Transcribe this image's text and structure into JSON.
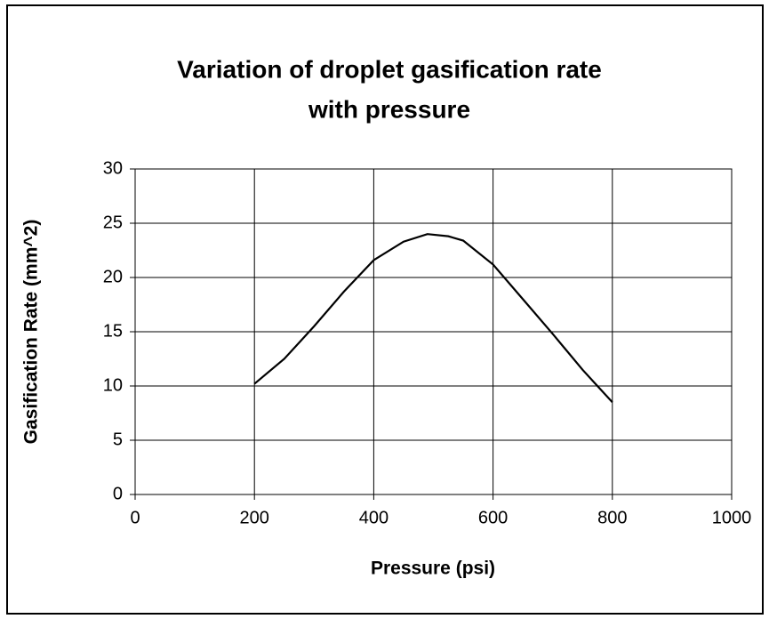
{
  "chart_data": {
    "type": "line",
    "title": [
      "Variation of droplet gasification rate",
      "with pressure"
    ],
    "xlabel": "Pressure (psi)",
    "ylabel": "Gasification Rate (mm^2)",
    "x": [
      200,
      250,
      300,
      350,
      400,
      450,
      490,
      525,
      550,
      600,
      650,
      700,
      750,
      770,
      800
    ],
    "series": [
      {
        "name": "Gasification Rate",
        "color": "#000000",
        "values": [
          10.2,
          12.5,
          15.5,
          18.7,
          21.6,
          23.3,
          24,
          23.8,
          23.4,
          21.2,
          18,
          14.8,
          11.5,
          10.3,
          8.5
        ]
      }
    ],
    "xlim": [
      0,
      1000
    ],
    "xticks": [
      0,
      200,
      400,
      600,
      800,
      1000
    ],
    "ylim": [
      0,
      30
    ],
    "yticks": [
      0,
      5,
      10,
      15,
      20,
      25,
      30
    ],
    "grid": true
  }
}
